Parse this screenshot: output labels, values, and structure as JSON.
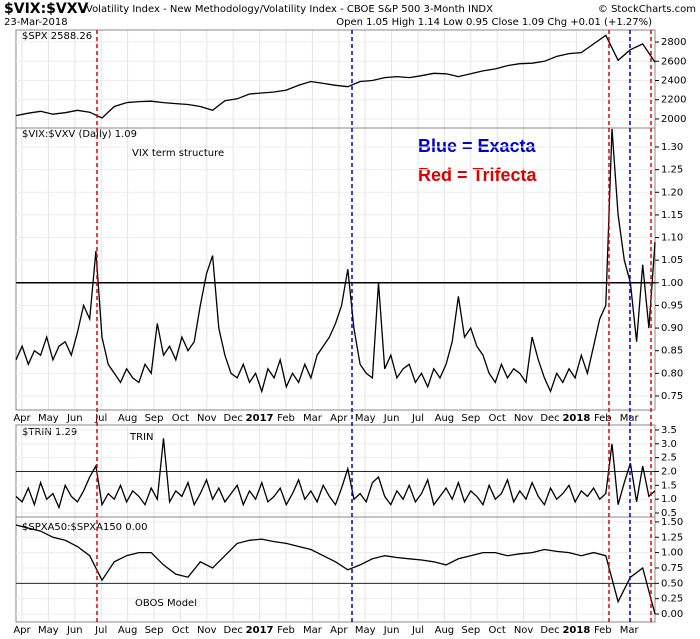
{
  "header": {
    "symbol": "$VIX:$VXV",
    "description": "Volatility Index - New Methodology/Volatility Index - CBOE S&P 500 3-Month INDX",
    "watermark": "© StockCharts.com",
    "date": "23-Mar-2018",
    "quote": "Open 1.05  High 1.14  Low 0.95  Close 1.09  Chg +0.01 (+1.27%)"
  },
  "x_axis_labels": [
    "Apr",
    "May",
    "Jun",
    "Jul",
    "Aug",
    "Sep",
    "Oct",
    "Nov",
    "Dec",
    "2017",
    "Feb",
    "Mar",
    "Apr",
    "May",
    "Jun",
    "Jul",
    "Aug",
    "Sep",
    "Oct",
    "Nov",
    "Dec",
    "2018",
    "Feb",
    "Mar"
  ],
  "chart_data": [
    {
      "type": "line",
      "label": "$SPX 2588.26",
      "color": "#000000",
      "ylim": [
        1906,
        2925
      ],
      "yticks": [
        2000,
        2200,
        2400,
        2600,
        2800
      ],
      "values": [
        2035,
        2060,
        2080,
        2050,
        2065,
        2090,
        2070,
        2010,
        2130,
        2170,
        2180,
        2185,
        2170,
        2160,
        2150,
        2130,
        2090,
        2190,
        2210,
        2260,
        2270,
        2280,
        2300,
        2350,
        2390,
        2370,
        2350,
        2335,
        2390,
        2400,
        2430,
        2440,
        2430,
        2450,
        2475,
        2470,
        2440,
        2470,
        2500,
        2520,
        2555,
        2575,
        2580,
        2600,
        2650,
        2680,
        2690,
        2780,
        2870,
        2610,
        2720,
        2780,
        2590
      ]
    },
    {
      "type": "line",
      "label": "$VIX:$VXV (Daily) 1.09",
      "annotations": [
        "VIX term structure",
        "Blue = Exacta",
        "Red = Trifecta"
      ],
      "color": "#000000",
      "ylim": [
        0.719,
        1.342
      ],
      "reference_line": 1.0,
      "yticks": [
        {
          "value": 0.75,
          "label": "0.75"
        },
        {
          "value": 0.8,
          "label": "0.80"
        },
        {
          "value": 0.85,
          "label": "0.85"
        },
        {
          "value": 0.9,
          "label": "0.90"
        },
        {
          "value": 0.95,
          "label": "0.95"
        },
        {
          "value": 1.0,
          "label": "1.00"
        },
        {
          "value": 1.05,
          "label": "1.05"
        },
        {
          "value": 1.1,
          "label": "1.10"
        },
        {
          "value": 1.15,
          "label": "1.15"
        },
        {
          "value": 1.2,
          "label": "1.20"
        },
        {
          "value": 1.25,
          "label": "1.25"
        },
        {
          "value": 1.3,
          "label": "1.30"
        }
      ],
      "values": [
        0.83,
        0.86,
        0.82,
        0.85,
        0.84,
        0.88,
        0.83,
        0.86,
        0.87,
        0.84,
        0.89,
        0.95,
        0.92,
        1.07,
        0.88,
        0.82,
        0.8,
        0.78,
        0.81,
        0.79,
        0.78,
        0.82,
        0.8,
        0.91,
        0.84,
        0.86,
        0.83,
        0.88,
        0.85,
        0.87,
        0.95,
        1.02,
        1.06,
        0.9,
        0.84,
        0.8,
        0.79,
        0.82,
        0.78,
        0.8,
        0.76,
        0.81,
        0.79,
        0.83,
        0.77,
        0.8,
        0.78,
        0.82,
        0.79,
        0.84,
        0.86,
        0.88,
        0.91,
        0.95,
        1.03,
        0.9,
        0.82,
        0.8,
        0.79,
        1.0,
        0.81,
        0.84,
        0.79,
        0.81,
        0.82,
        0.78,
        0.8,
        0.77,
        0.81,
        0.79,
        0.82,
        0.87,
        0.97,
        0.88,
        0.9,
        0.86,
        0.84,
        0.8,
        0.78,
        0.82,
        0.79,
        0.81,
        0.8,
        0.78,
        0.88,
        0.83,
        0.79,
        0.76,
        0.8,
        0.78,
        0.81,
        0.79,
        0.84,
        0.8,
        0.86,
        0.92,
        0.95,
        1.34,
        1.15,
        1.05,
        1.0,
        0.87,
        1.04,
        0.9,
        1.09
      ]
    },
    {
      "type": "line",
      "label": "$TRIN 1.29",
      "annotations": [
        "TRIN"
      ],
      "color": "#000000",
      "ylim": [
        0.355,
        3.68
      ],
      "reference_line": 2.0,
      "yticks": [
        0.5,
        {
          "value": 1.0,
          "label": "1.0"
        },
        1.5,
        {
          "value": 2.0,
          "label": "2.0"
        },
        2.5,
        {
          "value": 3.0,
          "label": "3.0"
        },
        3.5
      ],
      "values": [
        1.1,
        0.9,
        1.4,
        0.8,
        1.6,
        1.0,
        1.2,
        0.7,
        1.5,
        1.1,
        0.9,
        1.3,
        1.8,
        2.2,
        0.8,
        1.2,
        1.0,
        1.5,
        0.9,
        1.3,
        1.1,
        0.8,
        1.4,
        1.0,
        3.2,
        0.9,
        1.3,
        1.1,
        1.6,
        0.8,
        1.2,
        1.7,
        1.0,
        1.4,
        0.9,
        1.2,
        1.5,
        0.8,
        1.3,
        1.0,
        1.6,
        0.9,
        1.1,
        1.4,
        0.8,
        1.2,
        1.7,
        1.0,
        1.3,
        0.9,
        1.5,
        1.1,
        0.8,
        1.4,
        2.1,
        1.0,
        1.2,
        0.9,
        1.6,
        1.8,
        1.1,
        0.8,
        1.3,
        1.0,
        1.5,
        0.9,
        1.2,
        1.7,
        0.8,
        1.1,
        1.4,
        1.0,
        1.6,
        0.9,
        1.3,
        1.1,
        0.8,
        1.5,
        1.0,
        1.2,
        1.7,
        0.9,
        1.3,
        1.0,
        1.6,
        1.1,
        0.8,
        1.4,
        1.0,
        1.2,
        1.5,
        0.9,
        1.3,
        1.1,
        1.4,
        1.0,
        1.2,
        3.0,
        0.8,
        1.6,
        2.3,
        0.9,
        2.2,
        1.1,
        1.3
      ]
    },
    {
      "type": "line",
      "label": "$SPXA50:$SPXA150 0.00",
      "annotations": [
        "OBOS Model"
      ],
      "color": "#000000",
      "ylim": [
        -0.13,
        1.58
      ],
      "reference_line": 0.5,
      "yticks": [
        {
          "value": 0,
          "label": "0.00"
        },
        {
          "value": 0.25,
          "label": "0.25"
        },
        {
          "value": 0.5,
          "label": "0.50"
        },
        {
          "value": 0.75,
          "label": "0.75"
        },
        {
          "value": 1.0,
          "label": "1.00"
        },
        {
          "value": 1.25,
          "label": "1.25"
        },
        {
          "value": 1.5,
          "label": "1.50"
        }
      ],
      "values": [
        1.45,
        1.4,
        1.35,
        1.25,
        1.2,
        1.1,
        0.95,
        0.55,
        0.85,
        0.95,
        1.0,
        1.0,
        0.8,
        0.65,
        0.6,
        0.85,
        0.75,
        0.95,
        1.15,
        1.2,
        1.22,
        1.18,
        1.15,
        1.1,
        1.05,
        0.95,
        0.85,
        0.72,
        0.8,
        0.9,
        0.95,
        0.92,
        0.9,
        0.88,
        0.85,
        0.8,
        0.9,
        0.95,
        1.0,
        1.0,
        0.95,
        0.98,
        1.0,
        1.05,
        1.02,
        1.0,
        0.95,
        1.0,
        0.95,
        0.2,
        0.6,
        0.75,
        0.0
      ]
    }
  ]
}
